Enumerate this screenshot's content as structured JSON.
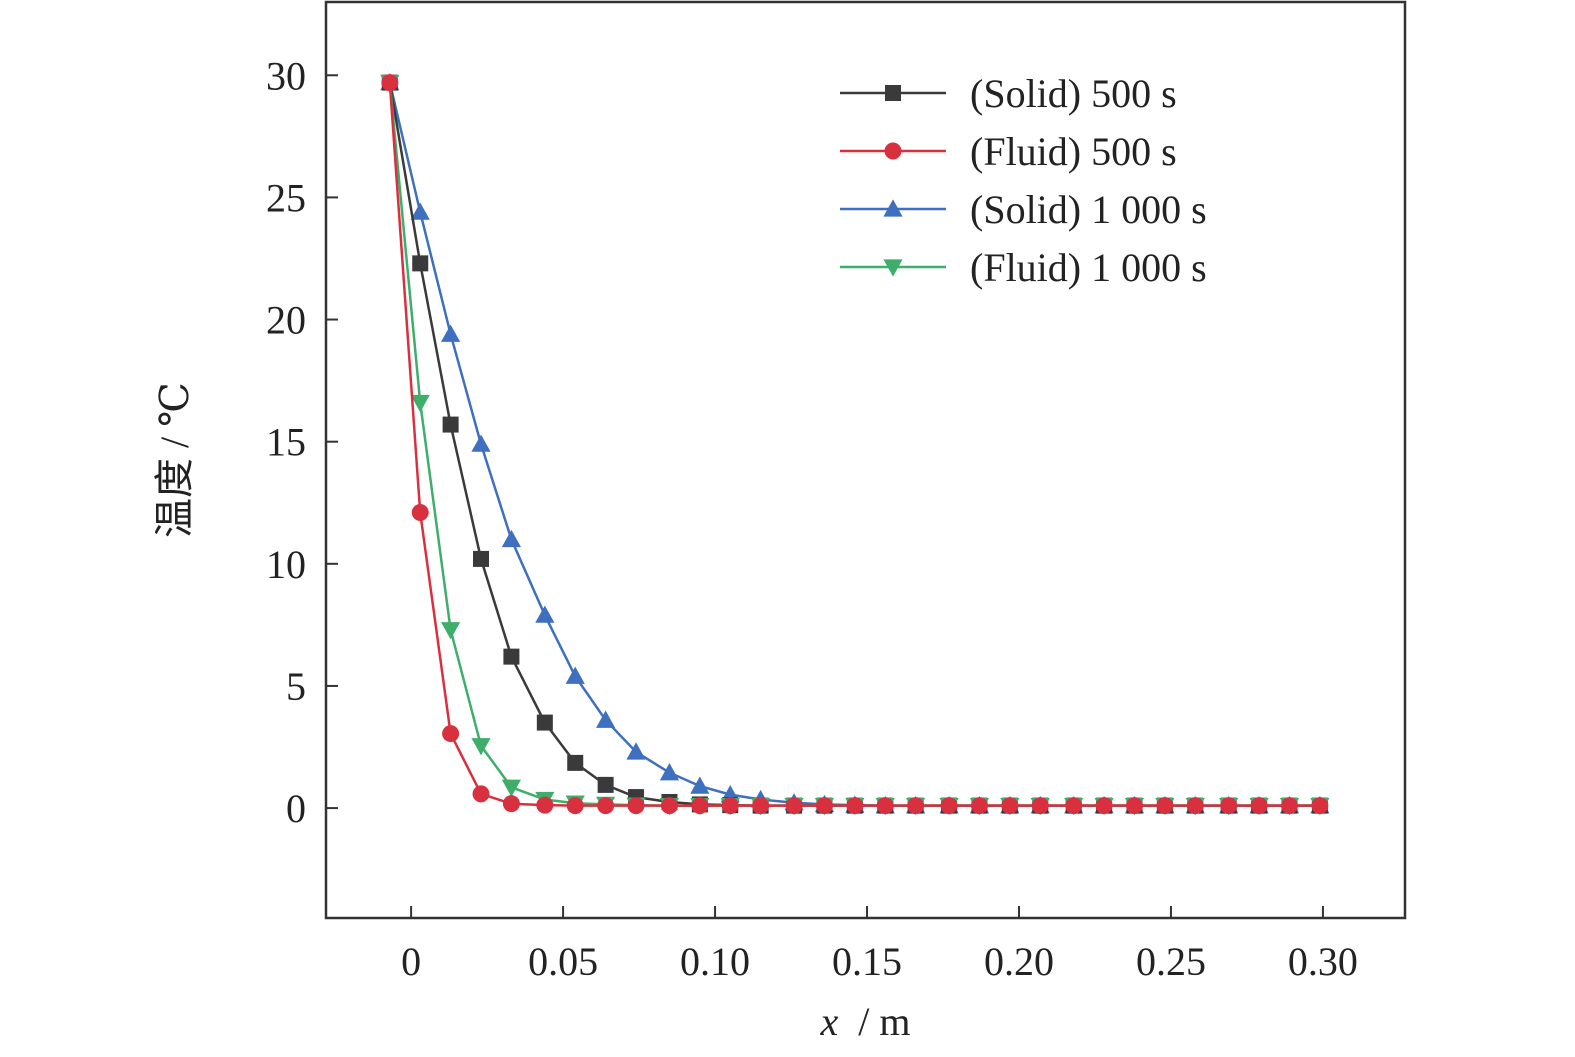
{
  "chart_data": {
    "type": "line",
    "xlabel_var": "x",
    "xlabel_unit": "/ m",
    "ylabel": "温度 / ℃",
    "xlim": [
      -0.028,
      0.327
    ],
    "ylim": [
      -4.5,
      33
    ],
    "xticks": [
      0,
      0.05,
      0.1,
      0.15,
      0.2,
      0.25,
      0.3
    ],
    "xtick_labels": [
      "0",
      "0.05",
      "0.10",
      "0.15",
      "0.20",
      "0.25",
      "0.30"
    ],
    "yticks": [
      0,
      5,
      10,
      15,
      20,
      25,
      30
    ],
    "ytick_labels": [
      "0",
      "5",
      "10",
      "15",
      "20",
      "25",
      "30"
    ],
    "grid": false,
    "legend_position": "top-right",
    "x": [
      -0.007,
      0.003,
      0.013,
      0.023,
      0.033,
      0.044,
      0.054,
      0.064,
      0.074,
      0.085,
      0.095,
      0.105,
      0.115,
      0.126,
      0.136,
      0.146,
      0.156,
      0.166,
      0.177,
      0.187,
      0.197,
      0.207,
      0.218,
      0.228,
      0.238,
      0.248,
      0.258,
      0.269,
      0.279,
      0.289,
      0.299
    ],
    "series": [
      {
        "name": "(Solid) 500 s",
        "color": "#3a3a3a",
        "marker": "square",
        "values": [
          29.7,
          22.3,
          15.7,
          10.2,
          6.2,
          3.5,
          1.85,
          0.95,
          0.45,
          0.25,
          0.15,
          0.12,
          0.1,
          0.1,
          0.1,
          0.1,
          0.1,
          0.1,
          0.1,
          0.1,
          0.1,
          0.1,
          0.1,
          0.1,
          0.1,
          0.1,
          0.1,
          0.1,
          0.1,
          0.1,
          0.1
        ]
      },
      {
        "name": "(Fluid) 500 s",
        "color": "#d8303f",
        "marker": "circle",
        "values": [
          29.7,
          12.1,
          3.05,
          0.58,
          0.18,
          0.12,
          0.1,
          0.1,
          0.1,
          0.1,
          0.1,
          0.1,
          0.1,
          0.1,
          0.1,
          0.1,
          0.1,
          0.1,
          0.1,
          0.1,
          0.1,
          0.1,
          0.1,
          0.1,
          0.1,
          0.1,
          0.1,
          0.1,
          0.1,
          0.1,
          0.1
        ]
      },
      {
        "name": "(Solid) 1 000 s",
        "color": "#3f6fbf",
        "marker": "triangle-up",
        "values": [
          29.7,
          24.4,
          19.4,
          14.9,
          11.0,
          7.9,
          5.4,
          3.6,
          2.3,
          1.45,
          0.9,
          0.55,
          0.35,
          0.22,
          0.15,
          0.12,
          0.1,
          0.1,
          0.1,
          0.1,
          0.1,
          0.1,
          0.1,
          0.1,
          0.1,
          0.1,
          0.1,
          0.1,
          0.1,
          0.1,
          0.1
        ]
      },
      {
        "name": "(Fluid) 1 000 s",
        "color": "#3fae6b",
        "marker": "triangle-down",
        "values": [
          29.7,
          16.6,
          7.3,
          2.55,
          0.85,
          0.35,
          0.2,
          0.15,
          0.12,
          0.1,
          0.1,
          0.1,
          0.1,
          0.1,
          0.1,
          0.1,
          0.1,
          0.1,
          0.1,
          0.1,
          0.1,
          0.1,
          0.1,
          0.1,
          0.1,
          0.1,
          0.1,
          0.1,
          0.1,
          0.1,
          0.1
        ]
      }
    ]
  }
}
